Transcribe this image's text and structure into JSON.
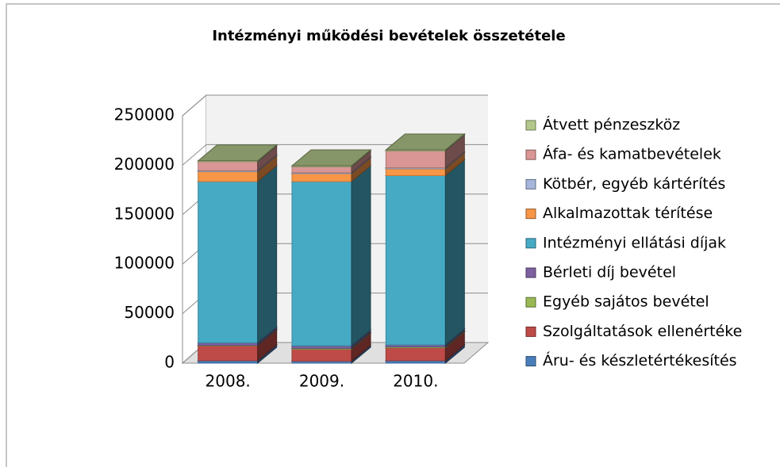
{
  "chart_data": {
    "type": "bar3d_stacked",
    "title": "Intézményi működési bevételek összetétele",
    "categories": [
      "2008.",
      "2009.",
      "2010."
    ],
    "ylim": [
      0,
      250000
    ],
    "yticks": [
      0,
      50000,
      100000,
      150000,
      200000,
      250000
    ],
    "grid": true,
    "legend": "right",
    "series": [
      {
        "name": "Áru- és készletértékesítés",
        "color": "#4a7ebb",
        "values": [
          2500,
          2000,
          2500
        ]
      },
      {
        "name": "Szolgáltatások ellenértéke",
        "color": "#be4b48",
        "values": [
          15000,
          12000,
          13000
        ]
      },
      {
        "name": "Egyéb sajátos bevétel",
        "color": "#98b954",
        "values": [
          500,
          1000,
          1000
        ]
      },
      {
        "name": "Bérleti díj bevétel",
        "color": "#7d60a0",
        "values": [
          2500,
          2500,
          2000
        ]
      },
      {
        "name": "Intézményi ellátási díjak",
        "color": "#46aac5",
        "values": [
          163000,
          166000,
          171000
        ]
      },
      {
        "name": "Alkalmazottak térítése",
        "color": "#f79646",
        "values": [
          10000,
          8000,
          7000
        ]
      },
      {
        "name": "Kötbér, egyéb kártérítés",
        "color": "#a5b6dc",
        "values": [
          1000,
          1000,
          1000
        ]
      },
      {
        "name": "Áfa- és kamatbevételek",
        "color": "#d99694",
        "values": [
          9000,
          6000,
          17000
        ]
      },
      {
        "name": "Átvett pénzeszköz",
        "color": "#b3c88a",
        "values": [
          1000,
          1000,
          1000
        ]
      }
    ]
  }
}
